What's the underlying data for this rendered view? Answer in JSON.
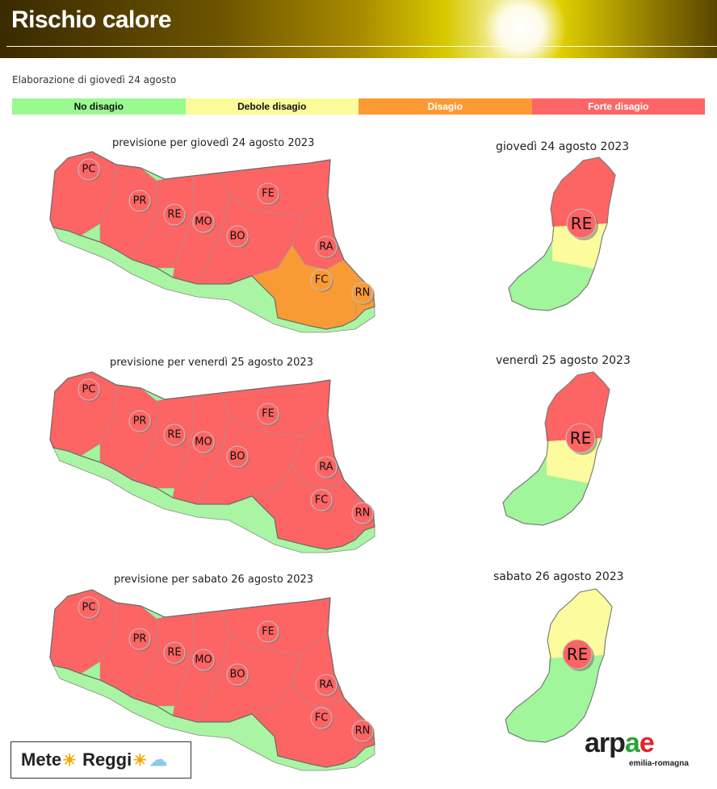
{
  "header": {
    "title": "Rischio calore"
  },
  "elaboration_text": "Elaborazione di giovedì 24 agosto",
  "legend": [
    {
      "label": "No disagio",
      "color": "#99fa8f",
      "text_color": "#111111"
    },
    {
      "label": "Debole disagio",
      "color": "#fbfb9b",
      "text_color": "#111111"
    },
    {
      "label": "Disagio",
      "color": "#fb9a33",
      "text_color": "#ffffff"
    },
    {
      "label": "Forte disagio",
      "color": "#fd6566",
      "text_color": "#ffffff"
    }
  ],
  "colors": {
    "no": "#a1f59a",
    "debole": "#fcfb9d",
    "disagio": "#fa9a35",
    "forte": "#fd6464",
    "border": "#7d7d7d"
  },
  "days": [
    {
      "region_title": "previsione per giovedì 24 agosto 2023",
      "province_title": "giovedì 24 agosto 2023",
      "province_badge": "RE",
      "province_top_level": "forte",
      "province_bottom_level": "debole",
      "province_tail_level": "no",
      "cities": [
        {
          "code": "PC",
          "level": "forte"
        },
        {
          "code": "PR",
          "level": "forte"
        },
        {
          "code": "RE",
          "level": "forte"
        },
        {
          "code": "MO",
          "level": "forte"
        },
        {
          "code": "BO",
          "level": "forte"
        },
        {
          "code": "FE",
          "level": "forte"
        },
        {
          "code": "RA",
          "level": "forte"
        },
        {
          "code": "FC",
          "level": "disagio"
        },
        {
          "code": "RN",
          "level": "disagio"
        }
      ]
    },
    {
      "region_title": "previsione per venerdì 25 agosto 2023",
      "province_title": "venerdì 25 agosto 2023",
      "province_badge": "RE",
      "province_top_level": "forte",
      "province_bottom_level": "debole",
      "province_tail_level": "no",
      "cities": [
        {
          "code": "PC",
          "level": "forte"
        },
        {
          "code": "PR",
          "level": "forte"
        },
        {
          "code": "RE",
          "level": "forte"
        },
        {
          "code": "MO",
          "level": "forte"
        },
        {
          "code": "BO",
          "level": "forte"
        },
        {
          "code": "FE",
          "level": "forte"
        },
        {
          "code": "RA",
          "level": "forte"
        },
        {
          "code": "FC",
          "level": "forte"
        },
        {
          "code": "RN",
          "level": "forte"
        }
      ]
    },
    {
      "region_title": "previsione per sabato 26 agosto 2023",
      "province_title": "sabato 26 agosto 2023",
      "province_badge": "RE",
      "province_top_level": "debole",
      "province_bottom_level": "no",
      "province_tail_level": "no",
      "cities": [
        {
          "code": "PC",
          "level": "forte"
        },
        {
          "code": "PR",
          "level": "forte"
        },
        {
          "code": "RE",
          "level": "forte"
        },
        {
          "code": "MO",
          "level": "forte"
        },
        {
          "code": "BO",
          "level": "forte"
        },
        {
          "code": "FE",
          "level": "forte"
        },
        {
          "code": "RA",
          "level": "forte"
        },
        {
          "code": "FC",
          "level": "forte"
        },
        {
          "code": "RN",
          "level": "forte"
        }
      ]
    }
  ],
  "logos": {
    "meteo_reggio_part1": "Mete",
    "meteo_reggio_part2": "Reggi",
    "arpae_ar": "arp",
    "arpae_a": "a",
    "arpae_e": "e",
    "arpae_sub": "emilia-romagna"
  }
}
